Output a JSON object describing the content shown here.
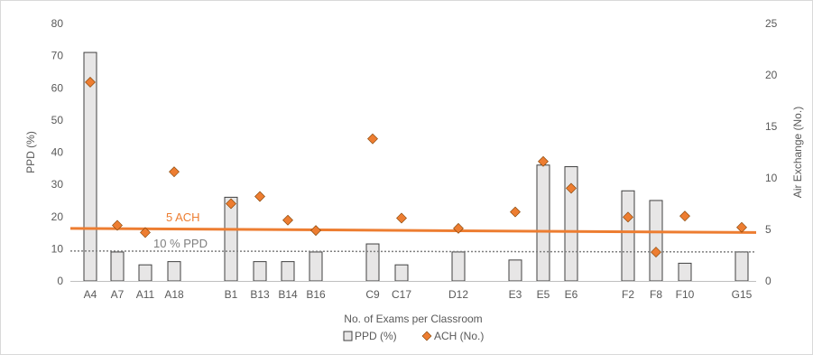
{
  "chart_data": {
    "type": "bar",
    "categories": [
      "A4",
      "A7",
      "A11",
      "A18",
      "B1",
      "B13",
      "B14",
      "B16",
      "C9",
      "C17",
      "D12",
      "E3",
      "E5",
      "E6",
      "F2",
      "F8",
      "F10",
      "G15"
    ],
    "xlabel": "No. of Exams per Classroom",
    "ylabel_left": "PPD (%)",
    "ylabel_right": "Air Exchange (No.)",
    "ylim_left": [
      0,
      80
    ],
    "ylim_right": [
      0,
      25
    ],
    "yticks_left": [
      "0",
      "10",
      "20",
      "30",
      "40",
      "50",
      "60",
      "70",
      "80"
    ],
    "yticks_right": [
      "0",
      "5",
      "10",
      "15",
      "20",
      "25"
    ],
    "series": [
      {
        "name": "PPD (%)",
        "type": "bar",
        "axis": "left",
        "values": [
          71,
          9,
          5,
          6,
          26,
          6,
          6,
          9,
          11.5,
          5,
          9,
          6.5,
          36,
          35.5,
          28,
          25,
          5.5,
          9
        ]
      },
      {
        "name": "ACH (No.)",
        "type": "scatter",
        "axis": "right",
        "marker": "diamond",
        "values": [
          19.3,
          5.4,
          4.7,
          10.6,
          7.5,
          8.2,
          5.9,
          4.9,
          13.8,
          6.1,
          5.1,
          6.7,
          11.6,
          9.0,
          6.2,
          2.8,
          6.3,
          5.2
        ]
      }
    ],
    "reference_lines": [
      {
        "label": "5 ACH",
        "axis": "right",
        "start": 5.1,
        "end": 4.7,
        "style": "solid",
        "color": "#ED7D31"
      },
      {
        "label": "10 % PPD",
        "axis": "left",
        "start": 9.3,
        "end": 9.0,
        "style": "dotted",
        "color": "#7F7F7F"
      }
    ],
    "legend": {
      "position": "bottom",
      "entries": [
        "PPD (%)",
        "ACH (No.)"
      ]
    },
    "grid": false,
    "colors": {
      "bar_fill": "#E7E6E6",
      "bar_stroke": "#404040",
      "marker_fill": "#ED7D31",
      "marker_stroke": "#7F3F00",
      "ach_line": "#ED7D31",
      "ppd_line": "#7F7F7F",
      "axis": "#BFBFBF",
      "text": "#595959"
    }
  }
}
